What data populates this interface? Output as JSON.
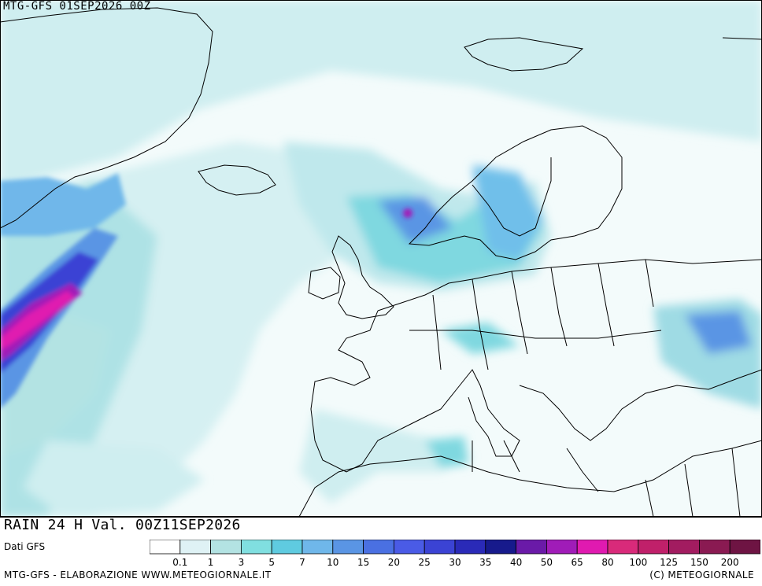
{
  "header": {
    "model_run": "MTG-GFS 01SEP2026 00Z"
  },
  "map": {
    "region": "Europe / North Atlantic",
    "field": "24h accumulated rainfall",
    "zero_color": "#ffffff",
    "coast_color": "#000000"
  },
  "footer": {
    "rain_title": "RAIN 24 H Val. 00Z11SEP2026",
    "source": "Dati GFS",
    "credit_left": "MTG-GFS - ELABORAZIONE WWW.METEOGIORNALE.IT",
    "credit_right": "(C) METEOGIORNALE"
  },
  "legend": {
    "labels": [
      "0.1",
      "1",
      "3",
      "5",
      "7",
      "10",
      "15",
      "20",
      "25",
      "30",
      "35",
      "40",
      "50",
      "65",
      "80",
      "100",
      "125",
      "150",
      "200"
    ],
    "colors": [
      "#ffffff",
      "#dff2f5",
      "#b3e3e3",
      "#80dfe0",
      "#5fcbe0",
      "#6fb7ea",
      "#5a95e4",
      "#4a70e2",
      "#4a5be6",
      "#3b43d4",
      "#2a2ab8",
      "#171a8c",
      "#6a1aa8",
      "#a01cb8",
      "#e01ab0",
      "#d92a7a",
      "#c0206a",
      "#a21c60",
      "#8a1a52",
      "#6e1443"
    ]
  }
}
